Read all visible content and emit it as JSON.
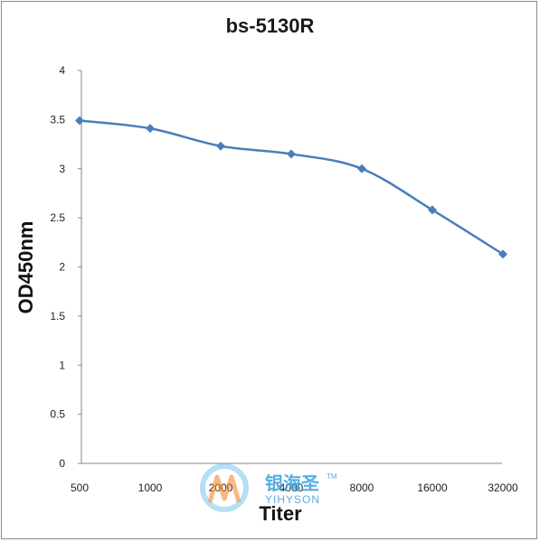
{
  "chart_data": {
    "type": "line",
    "title": "bs-5130R",
    "xlabel": "Titer",
    "ylabel": "OD450nm",
    "categories": [
      "500",
      "1000",
      "2000",
      "4000",
      "8000",
      "16000",
      "32000"
    ],
    "series": [
      {
        "values": [
          3.49,
          3.41,
          3.23,
          3.15,
          3.0,
          2.58,
          2.13
        ]
      }
    ],
    "ylim": [
      0,
      4
    ],
    "yticks": [
      "0",
      "0.5",
      "1",
      "1.5",
      "2",
      "2.5",
      "3",
      "3.5",
      "4"
    ],
    "grid": false,
    "legend": "none",
    "colors": {
      "line": "#4a7ebb",
      "axis": "#878787"
    }
  },
  "watermark": {
    "text_cn": "银海圣",
    "text_en": "YIHYSON",
    "trademark": "TM"
  }
}
